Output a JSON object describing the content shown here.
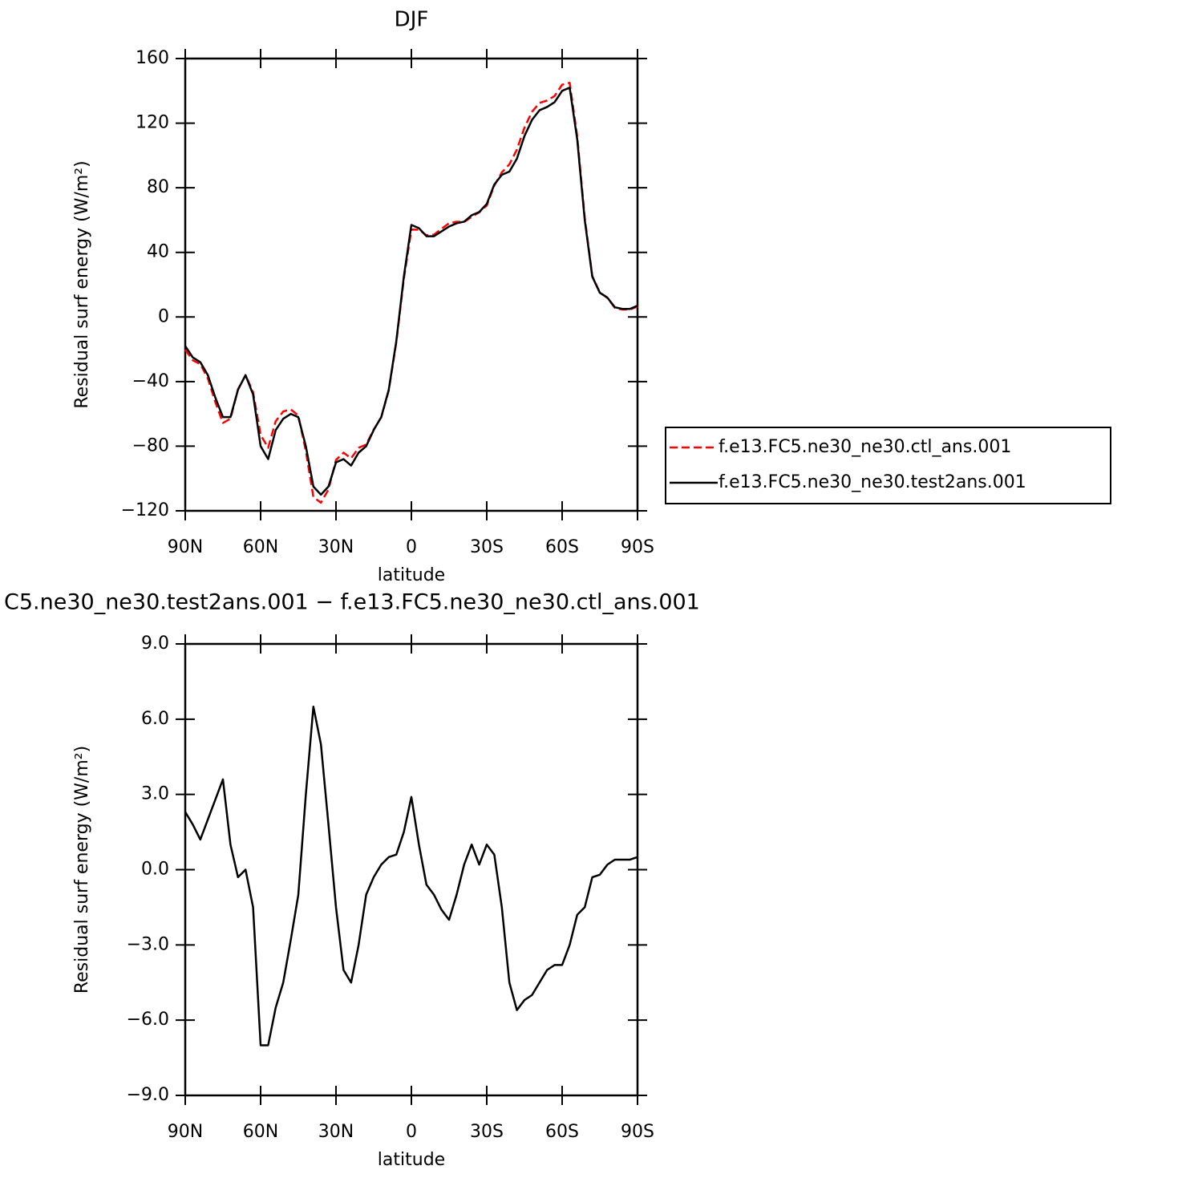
{
  "chart_data": [
    {
      "type": "line",
      "title": "DJF",
      "xlabel": "latitude",
      "ylabel": "Residual surf energy (W/m²)",
      "legend": "outside-right",
      "xlim": [
        90,
        -90
      ],
      "xticks": [
        {
          "value": 90,
          "label": "90N"
        },
        {
          "value": 60,
          "label": "60N"
        },
        {
          "value": 30,
          "label": "30N"
        },
        0,
        {
          "value": -30,
          "label": "30S"
        },
        {
          "value": -60,
          "label": "60S"
        },
        {
          "value": -90,
          "label": "90S"
        }
      ],
      "ylim": [
        -120,
        160
      ],
      "yticks": [
        {
          "value": -120,
          "label": "−120"
        },
        {
          "value": -80,
          "label": "−80"
        },
        {
          "value": -40,
          "label": "−40"
        },
        0,
        40,
        80,
        120,
        160
      ],
      "x": [
        90,
        87,
        84,
        81,
        78,
        75,
        72,
        69,
        66,
        63,
        60,
        57,
        54,
        51,
        48,
        45,
        42,
        39,
        36,
        33,
        30,
        27,
        24,
        21,
        18,
        15,
        12,
        9,
        6,
        3,
        0,
        -3,
        -6,
        -9,
        -12,
        -15,
        -18,
        -21,
        -24,
        -27,
        -30,
        -33,
        -36,
        -39,
        -42,
        -45,
        -48,
        -51,
        -54,
        -57,
        -60,
        -63,
        -66,
        -69,
        -72,
        -75,
        -78,
        -81,
        -84,
        -87,
        -90
      ],
      "series": [
        {
          "name": "f.e13.FC5.ne30_ne30.ctl_ans.001",
          "color": "#ff0000",
          "line_style": "dashed",
          "values": [
            -20.3,
            -26.8,
            -29.2,
            -38,
            -52.8,
            -65.6,
            -63,
            -44.7,
            -36,
            -46.5,
            -73,
            -81,
            -64.5,
            -58.5,
            -57.2,
            -61,
            -83,
            -111.5,
            -115,
            -106.8,
            -88.5,
            -84,
            -87.5,
            -81,
            -79,
            -69.7,
            -62.2,
            -45.5,
            -15.6,
            23.5,
            54.1,
            54,
            50.6,
            51,
            54.6,
            58,
            59,
            58.8,
            62,
            64.8,
            69,
            81.4,
            89.5,
            94.5,
            103.6,
            117.2,
            127,
            132.5,
            134,
            136.8,
            143.8,
            145,
            111.8,
            61.5,
            25.3,
            15.2,
            11.8,
            5.6,
            4.6,
            4.6,
            6.5
          ]
        },
        {
          "name": "f.e13.FC5.ne30_ne30.test2ans.001",
          "color": "#000000",
          "line_style": "solid",
          "values": [
            -18,
            -25,
            -28,
            -36,
            -50,
            -62,
            -62,
            -45,
            -36,
            -48,
            -80,
            -88,
            -70,
            -63,
            -60,
            -62,
            -80,
            -105,
            -110,
            -105,
            -90,
            -88,
            -92,
            -84,
            -80,
            -70,
            -62,
            -45,
            -15,
            25,
            57,
            55,
            50,
            50,
            53,
            56,
            58,
            59,
            63,
            65,
            70,
            82,
            88,
            90,
            98,
            112,
            122,
            128,
            130,
            133,
            140,
            142,
            110,
            60,
            25,
            15,
            12,
            6,
            5,
            5,
            7
          ]
        }
      ]
    },
    {
      "type": "line",
      "title": "C5.ne30_ne30.test2ans.001 − f.e13.FC5.ne30_ne30.ctl_ans.001",
      "xlabel": "latitude",
      "ylabel": "Residual surf energy (W/m²)",
      "xlim": [
        90,
        -90
      ],
      "xticks": [
        {
          "value": 90,
          "label": "90N"
        },
        {
          "value": 60,
          "label": "60N"
        },
        {
          "value": 30,
          "label": "30N"
        },
        0,
        {
          "value": -30,
          "label": "30S"
        },
        {
          "value": -60,
          "label": "60S"
        },
        {
          "value": -90,
          "label": "90S"
        }
      ],
      "ylim": [
        -9,
        9
      ],
      "yticks": [
        {
          "value": -9,
          "label": "−9.0"
        },
        {
          "value": -6,
          "label": "−6.0"
        },
        {
          "value": -3,
          "label": "−3.0"
        },
        {
          "value": 0,
          "label": "0.0"
        },
        {
          "value": 3,
          "label": "3.0"
        },
        {
          "value": 6,
          "label": "6.0"
        },
        {
          "value": 9,
          "label": "9.0"
        }
      ],
      "x": [
        90,
        87,
        84,
        81,
        78,
        75,
        72,
        69,
        66,
        63,
        60,
        57,
        54,
        51,
        48,
        45,
        42,
        39,
        36,
        33,
        30,
        27,
        24,
        21,
        18,
        15,
        12,
        9,
        6,
        3,
        0,
        -3,
        -6,
        -9,
        -12,
        -15,
        -18,
        -21,
        -24,
        -27,
        -30,
        -33,
        -36,
        -39,
        -42,
        -45,
        -48,
        -51,
        -54,
        -57,
        -60,
        -63,
        -66,
        -69,
        -72,
        -75,
        -78,
        -81,
        -84,
        -87,
        -90
      ],
      "series": [
        {
          "color": "#000000",
          "line_style": "solid",
          "values": [
            2.3,
            1.8,
            1.2,
            2.0,
            2.8,
            3.6,
            1.0,
            -0.3,
            0.0,
            -1.5,
            -7.0,
            -7.0,
            -5.5,
            -4.5,
            -2.8,
            -1.0,
            3.0,
            6.5,
            5.0,
            1.8,
            -1.5,
            -4.0,
            -4.5,
            -3.0,
            -1.0,
            -0.3,
            0.2,
            0.5,
            0.6,
            1.5,
            2.9,
            1.0,
            -0.6,
            -1.0,
            -1.6,
            -2.0,
            -1.0,
            0.2,
            1.0,
            0.2,
            1.0,
            0.6,
            -1.5,
            -4.5,
            -5.6,
            -5.2,
            -5.0,
            -4.5,
            -4.0,
            -3.8,
            -3.8,
            -3.0,
            -1.8,
            -1.5,
            -0.3,
            -0.2,
            0.2,
            0.4,
            0.4,
            0.4,
            0.5
          ]
        }
      ]
    }
  ]
}
